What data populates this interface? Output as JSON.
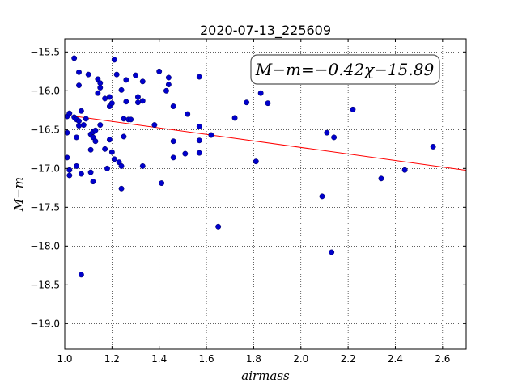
{
  "chart_data": {
    "type": "scatter",
    "title": "2020-07-13_225609",
    "xlabel": "airmass",
    "ylabel": "M−m",
    "xlim": [
      1.0,
      2.7
    ],
    "ylim": [
      -19.33,
      -15.33
    ],
    "y_inverted": true,
    "grid": true,
    "xticks": [
      1.0,
      1.2,
      1.4,
      1.6,
      1.8,
      2.0,
      2.2,
      2.4,
      2.6
    ],
    "yticks": [
      -15.5,
      -16.0,
      -16.5,
      -17.0,
      -17.5,
      -18.0,
      -18.5,
      -19.0
    ],
    "xtick_labels": [
      "1.0",
      "1.2",
      "1.4",
      "1.6",
      "1.8",
      "2.0",
      "2.2",
      "2.4",
      "2.6"
    ],
    "ytick_labels": [
      "−15.5",
      "−16.0",
      "−16.5",
      "−17.0",
      "−17.5",
      "−18.0",
      "−18.5",
      "−19.0"
    ],
    "annotation": "M−m=−0.42χ−15.89",
    "fit": {
      "slope": -0.42,
      "intercept": -15.89,
      "color": "#ff0000"
    },
    "marker_color": "#0000cc",
    "points": [
      {
        "x": 1.01,
        "y": -16.33
      },
      {
        "x": 1.02,
        "y": -16.29
      },
      {
        "x": 1.01,
        "y": -16.54
      },
      {
        "x": 1.01,
        "y": -16.86
      },
      {
        "x": 1.02,
        "y": -17.02
      },
      {
        "x": 1.02,
        "y": -17.09
      },
      {
        "x": 1.04,
        "y": -15.58
      },
      {
        "x": 1.06,
        "y": -15.76
      },
      {
        "x": 1.06,
        "y": -15.93
      },
      {
        "x": 1.04,
        "y": -16.34
      },
      {
        "x": 1.05,
        "y": -16.37
      },
      {
        "x": 1.06,
        "y": -16.39
      },
      {
        "x": 1.06,
        "y": -16.45
      },
      {
        "x": 1.08,
        "y": -16.44
      },
      {
        "x": 1.07,
        "y": -16.26
      },
      {
        "x": 1.09,
        "y": -16.36
      },
      {
        "x": 1.05,
        "y": -16.6
      },
      {
        "x": 1.05,
        "y": -16.97
      },
      {
        "x": 1.07,
        "y": -17.07
      },
      {
        "x": 1.07,
        "y": -18.37
      },
      {
        "x": 1.1,
        "y": -15.79
      },
      {
        "x": 1.11,
        "y": -16.56
      },
      {
        "x": 1.12,
        "y": -16.6
      },
      {
        "x": 1.13,
        "y": -16.65
      },
      {
        "x": 1.12,
        "y": -16.53
      },
      {
        "x": 1.13,
        "y": -16.51
      },
      {
        "x": 1.11,
        "y": -16.76
      },
      {
        "x": 1.11,
        "y": -17.05
      },
      {
        "x": 1.12,
        "y": -17.17
      },
      {
        "x": 1.14,
        "y": -15.85
      },
      {
        "x": 1.15,
        "y": -15.9
      },
      {
        "x": 1.15,
        "y": -15.96
      },
      {
        "x": 1.14,
        "y": -16.03
      },
      {
        "x": 1.15,
        "y": -16.44
      },
      {
        "x": 1.17,
        "y": -16.1
      },
      {
        "x": 1.17,
        "y": -16.75
      },
      {
        "x": 1.19,
        "y": -16.08
      },
      {
        "x": 1.19,
        "y": -16.2
      },
      {
        "x": 1.2,
        "y": -16.16
      },
      {
        "x": 1.19,
        "y": -16.63
      },
      {
        "x": 1.2,
        "y": -16.79
      },
      {
        "x": 1.21,
        "y": -16.88
      },
      {
        "x": 1.18,
        "y": -17.0
      },
      {
        "x": 1.21,
        "y": -15.6
      },
      {
        "x": 1.22,
        "y": -15.79
      },
      {
        "x": 1.23,
        "y": -16.92
      },
      {
        "x": 1.24,
        "y": -16.97
      },
      {
        "x": 1.24,
        "y": -15.99
      },
      {
        "x": 1.24,
        "y": -17.26
      },
      {
        "x": 1.25,
        "y": -16.36
      },
      {
        "x": 1.25,
        "y": -16.59
      },
      {
        "x": 1.26,
        "y": -15.86
      },
      {
        "x": 1.26,
        "y": -16.14
      },
      {
        "x": 1.27,
        "y": -16.37
      },
      {
        "x": 1.28,
        "y": -16.37
      },
      {
        "x": 1.3,
        "y": -15.8
      },
      {
        "x": 1.31,
        "y": -16.08
      },
      {
        "x": 1.31,
        "y": -16.15
      },
      {
        "x": 1.33,
        "y": -16.13
      },
      {
        "x": 1.33,
        "y": -15.88
      },
      {
        "x": 1.33,
        "y": -16.97
      },
      {
        "x": 1.38,
        "y": -16.44
      },
      {
        "x": 1.4,
        "y": -15.75
      },
      {
        "x": 1.41,
        "y": -17.19
      },
      {
        "x": 1.43,
        "y": -16.0
      },
      {
        "x": 1.44,
        "y": -15.92
      },
      {
        "x": 1.44,
        "y": -15.83
      },
      {
        "x": 1.46,
        "y": -16.2
      },
      {
        "x": 1.46,
        "y": -16.65
      },
      {
        "x": 1.46,
        "y": -16.86
      },
      {
        "x": 1.51,
        "y": -16.81
      },
      {
        "x": 1.52,
        "y": -16.3
      },
      {
        "x": 1.57,
        "y": -15.82
      },
      {
        "x": 1.57,
        "y": -16.46
      },
      {
        "x": 1.57,
        "y": -16.64
      },
      {
        "x": 1.57,
        "y": -16.8
      },
      {
        "x": 1.62,
        "y": -16.57
      },
      {
        "x": 1.65,
        "y": -17.75
      },
      {
        "x": 1.72,
        "y": -16.35
      },
      {
        "x": 1.77,
        "y": -16.15
      },
      {
        "x": 1.81,
        "y": -16.91
      },
      {
        "x": 1.83,
        "y": -16.03
      },
      {
        "x": 1.86,
        "y": -16.16
      },
      {
        "x": 2.09,
        "y": -17.36
      },
      {
        "x": 2.11,
        "y": -16.54
      },
      {
        "x": 2.14,
        "y": -16.6
      },
      {
        "x": 2.13,
        "y": -18.08
      },
      {
        "x": 2.22,
        "y": -16.24
      },
      {
        "x": 2.34,
        "y": -17.13
      },
      {
        "x": 2.44,
        "y": -17.02
      },
      {
        "x": 2.56,
        "y": -16.72
      }
    ]
  }
}
